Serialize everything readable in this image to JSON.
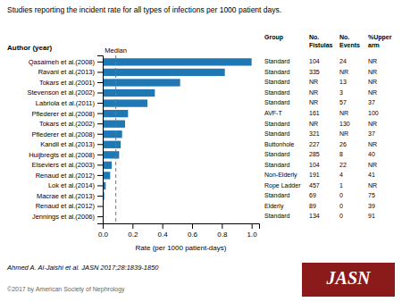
{
  "chart_data": {
    "type": "bar",
    "orientation": "horizontal",
    "title": "Studies reporting the incident rate for all types of infections per 1000 patient days.",
    "categories_label": "Author (year)",
    "categories": [
      "Qasaimeh et al.(2008)",
      "Ravani et al.(2013)",
      "Tokars et al.(2001)",
      "Stevenson et al.(2002)",
      "Labriola et al.(2011)",
      "Pflederer et al.(2008)",
      "Tokars et al.(2002)",
      "Pflederer et al.(2008)",
      "Kandil et al.(2013)",
      "Huijbregts et al.(2008)",
      "Elseviers et al.(2003)",
      "Renaud et al.(2012)",
      "Lok et al.(2014)",
      "Macrae et al.(2013)",
      "Renaud et al.(2012)",
      "Jennings et al.(2006)"
    ],
    "values": [
      1.0,
      0.82,
      0.52,
      0.35,
      0.3,
      0.17,
      0.15,
      0.13,
      0.12,
      0.11,
      0.06,
      0.05,
      0.02,
      0.01,
      0.005,
      0.003
    ],
    "x_label": "Rate (per 1000 patient-days)",
    "xlim": [
      0,
      1.05
    ],
    "xticks": [
      {
        "value": 0.0,
        "label": "0.0"
      },
      0.2,
      0.4,
      0.6,
      0.8,
      {
        "value": 1.0,
        "label": "1.0"
      }
    ],
    "grid": false,
    "median_line": {
      "value": 0.088,
      "label": "Median"
    },
    "table": [
      {
        "header": "Group",
        "values": [
          "Standard",
          "Standard",
          "Standard",
          "Standard",
          "Standard",
          "AVF-T",
          "Standard",
          "Standard",
          "Buttonhole",
          "Standard",
          "Standard",
          "Non-Elderly",
          "Rope Ladder",
          "Standard",
          "Elderly",
          "Standard"
        ]
      },
      {
        "header": "No.\nFistulas",
        "values": [
          "104",
          "335",
          "NR",
          "NR",
          "NR",
          "161",
          "NR",
          "321",
          "227",
          "285",
          "104",
          "191",
          "457",
          "69",
          "89",
          "134"
        ]
      },
      {
        "header": "No.\nEvents",
        "values": [
          "24",
          "NR",
          "13",
          "3",
          "57",
          "NR",
          "130",
          "NR",
          "26",
          "8",
          "22",
          "4",
          "1",
          "0",
          "0",
          "0"
        ]
      },
      {
        "header": "%Upper\narm",
        "values": [
          "NR",
          "NR",
          "NR",
          "NR",
          "37",
          "100",
          "NR",
          "37",
          "NR",
          "40",
          "NR",
          "41",
          "NR",
          "75",
          "39",
          "91"
        ]
      }
    ],
    "citation": "Ahmed A. Al-Jaishi et al. JASN 2017;28:1839-1850",
    "copyright": "©2017 by American Society of Nephrology",
    "logo": {
      "text": "JASN",
      "color": "#8B1A1A"
    }
  }
}
